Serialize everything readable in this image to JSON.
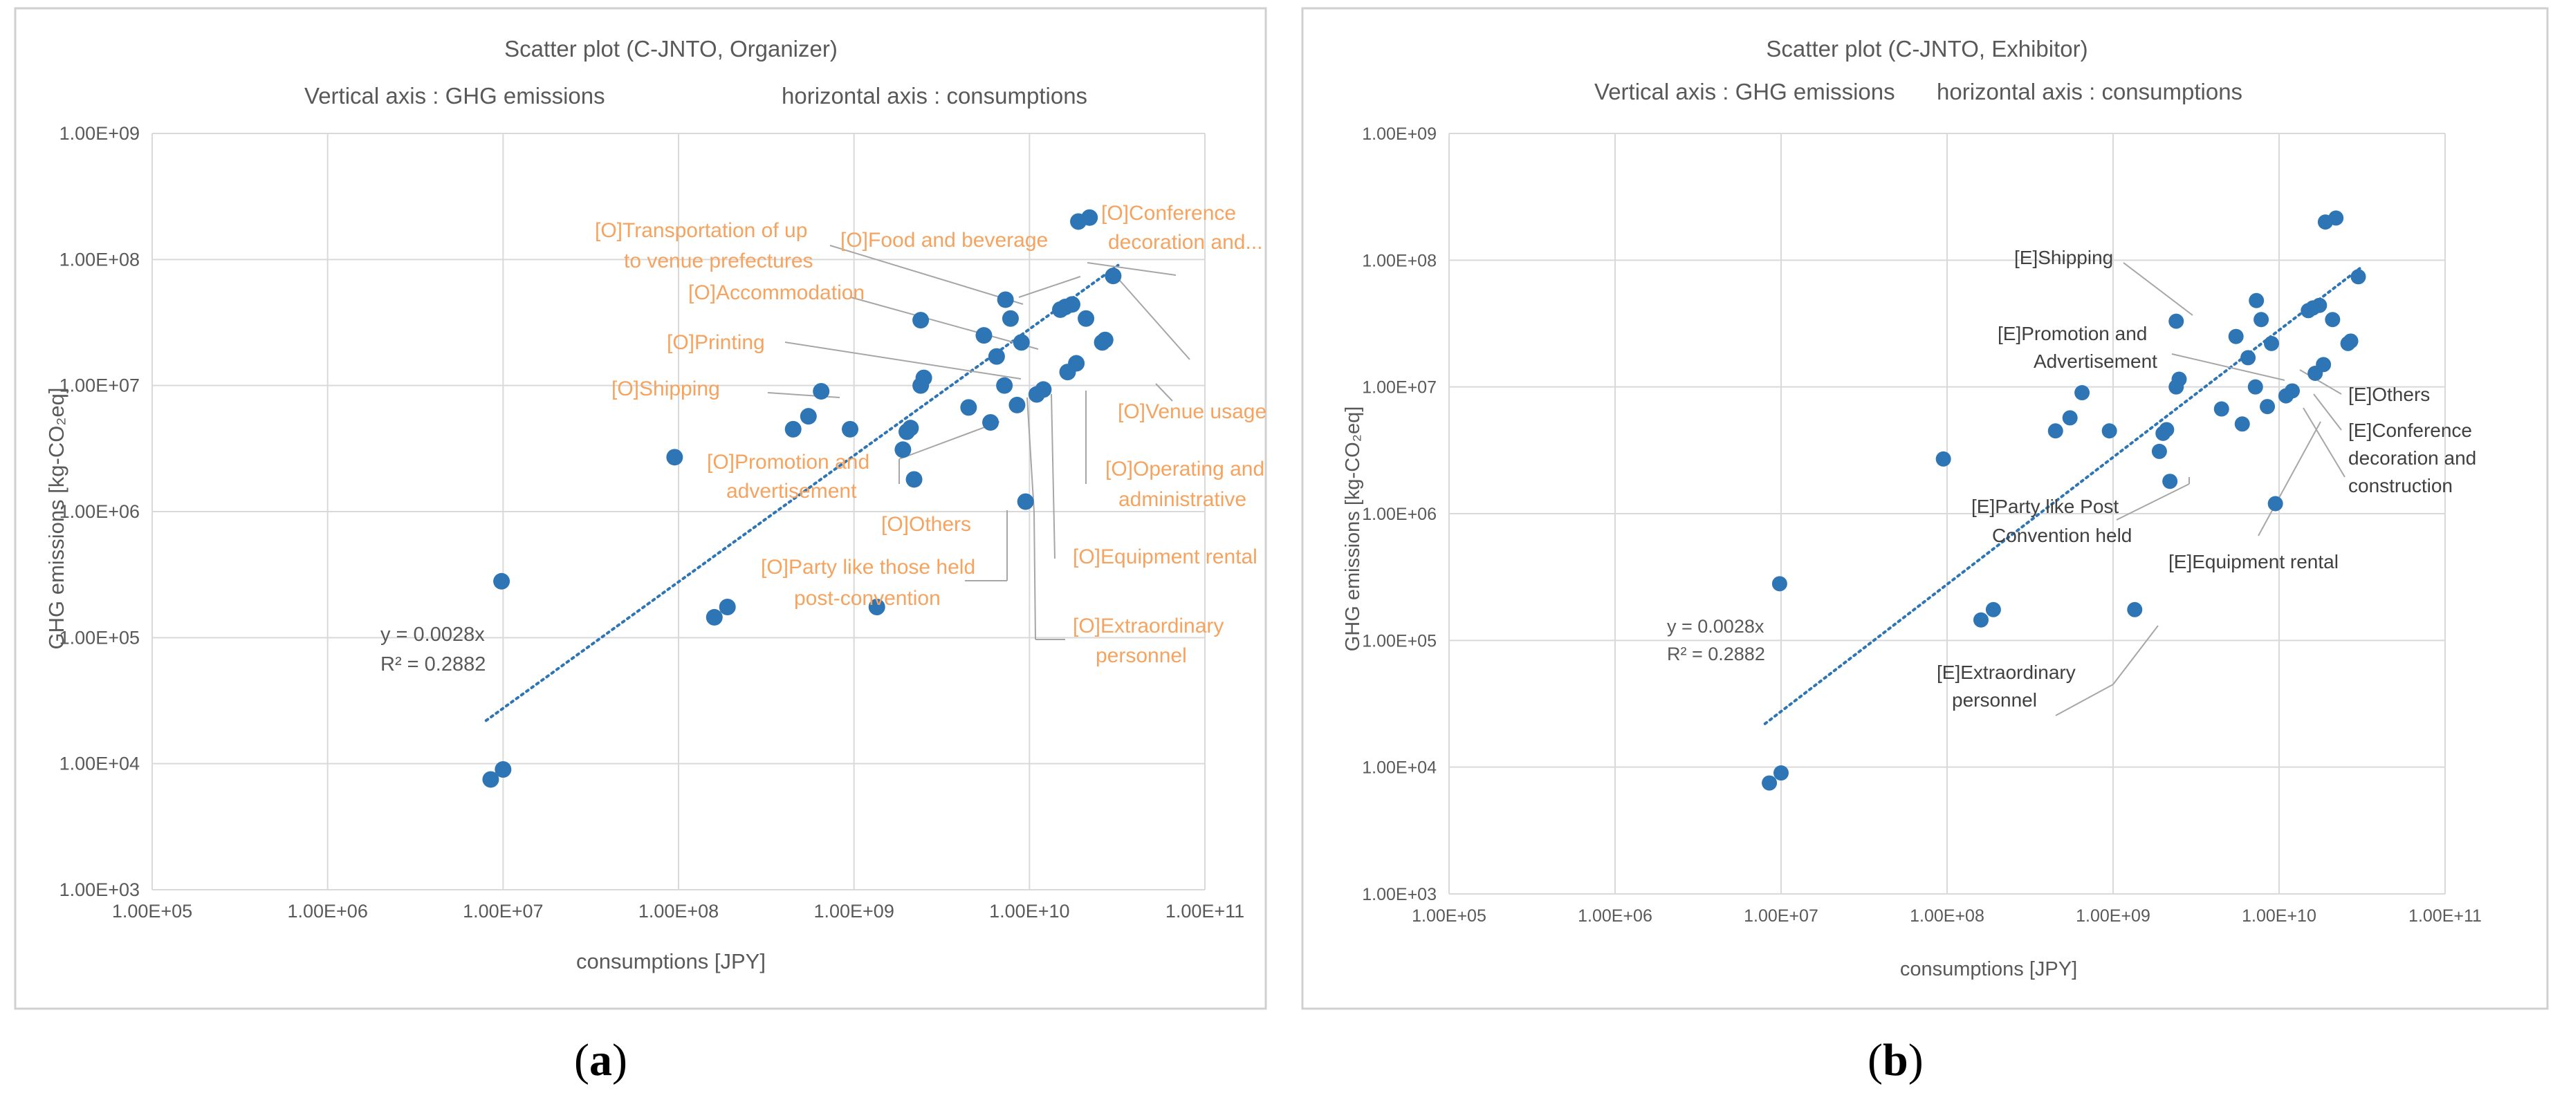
{
  "chart_data": [
    {
      "type": "scatter",
      "panel_label": "(a)",
      "panel_letter": "a",
      "title": "Scatter plot (C-JNTO, Organizer)",
      "subtitle_y": "Vertical axis : GHG emissions",
      "subtitle_x": "horizontal axis : consumptions",
      "xlabel": "consumptions [JPY]",
      "ylabel": "GHG emissions [kg-CO₂eq]",
      "xscale": "log",
      "yscale": "log",
      "xlim": [
        100000,
        100000000000
      ],
      "ylim": [
        1000,
        1000000000
      ],
      "x_ticks": [
        "1.00E+05",
        "1.00E+06",
        "1.00E+07",
        "1.00E+08",
        "1.00E+09",
        "1.00E+10",
        "1.00E+11"
      ],
      "y_ticks": [
        "1.00E+03",
        "1.00E+04",
        "1.00E+05",
        "1.00E+06",
        "1.00E+07",
        "1.00E+08",
        "1.00E+09"
      ],
      "grid": true,
      "trendline": {
        "equation": "y = 0.0028x",
        "r2": "R² = 0.2882",
        "x_range": [
          8000000,
          32000000000
        ],
        "y_range": [
          22000,
          90000000
        ]
      },
      "points": [
        [
          8500000,
          7500
        ],
        [
          10000000,
          9000
        ],
        [
          9800000,
          280000
        ],
        [
          95000000,
          2700000
        ],
        [
          160000000,
          145000
        ],
        [
          190000000,
          175000
        ],
        [
          450000000,
          4500000
        ],
        [
          550000000,
          5700000
        ],
        [
          650000000,
          9000000
        ],
        [
          950000000,
          4500000
        ],
        [
          1350000000,
          175000
        ],
        [
          1900000000,
          3100000
        ],
        [
          2000000000,
          4300000
        ],
        [
          2100000000,
          4600000
        ],
        [
          2200000000,
          1800000
        ],
        [
          2400000000,
          33000000
        ],
        [
          2400000000,
          10000000
        ],
        [
          2500000000,
          11500000
        ],
        [
          4500000000,
          6700000
        ],
        [
          5500000000,
          25000000
        ],
        [
          6000000000,
          5100000
        ],
        [
          6500000000,
          17000000
        ],
        [
          7200000000,
          10000000
        ],
        [
          7300000000,
          48000000
        ],
        [
          7800000000,
          34000000
        ],
        [
          8500000000,
          7000000
        ],
        [
          9500000000,
          1200000
        ],
        [
          9000000000,
          22000000
        ],
        [
          11000000000,
          8500000
        ],
        [
          12000000000,
          9300000
        ],
        [
          15000000000,
          40000000
        ],
        [
          16000000000,
          42000000
        ],
        [
          16500000000,
          12800000
        ],
        [
          17500000000,
          44000000
        ],
        [
          18500000000,
          15000000
        ],
        [
          19000000000,
          200000000
        ],
        [
          21000000000,
          34000000
        ],
        [
          22000000000,
          215000000
        ],
        [
          26000000000,
          22000000
        ],
        [
          27000000000,
          23000000
        ],
        [
          30000000000,
          74000000
        ]
      ],
      "annotations": [
        "[O]Food and beverage",
        "[O]Conference",
        "decoration and...",
        "[O]Transportation of up",
        "to venue prefectures",
        "[O]Accommodation",
        "[O]Printing",
        "[O]Shipping",
        "[O]Venue usage",
        "[O]Promotion and",
        "advertisement",
        "[O]Operating and",
        "administrative",
        "[O]Others",
        "[O]Equipment rental",
        "[O]Party like those held",
        "post-convention",
        "[O]Extraordinary",
        "personnel"
      ],
      "annotation_color": "#f5a35f",
      "point_color": "#2e75b6"
    },
    {
      "type": "scatter",
      "panel_label": "(b)",
      "panel_letter": "b",
      "title": "Scatter plot (C-JNTO, Exhibitor)",
      "subtitle_y": "Vertical axis : GHG emissions",
      "subtitle_x": "horizontal axis : consumptions",
      "xlabel": "consumptions [JPY]",
      "ylabel": "GHG emissions [kg-CO₂eq]",
      "xscale": "log",
      "yscale": "log",
      "xlim": [
        100000,
        100000000000
      ],
      "ylim": [
        1000,
        1000000000
      ],
      "x_ticks": [
        "1.00E+05",
        "1.00E+06",
        "1.00E+07",
        "1.00E+08",
        "1.00E+09",
        "1.00E+10",
        "1.00E+11"
      ],
      "y_ticks": [
        "1.00E+03",
        "1.00E+04",
        "1.00E+05",
        "1.00E+06",
        "1.00E+07",
        "1.00E+08",
        "1.00E+09"
      ],
      "grid": true,
      "trendline": {
        "equation": "y = 0.0028x",
        "r2": "R² = 0.2882",
        "x_range": [
          8000000,
          32000000000
        ],
        "y_range": [
          22000,
          90000000
        ]
      },
      "points": [
        [
          8500000,
          7500
        ],
        [
          10000000,
          9000
        ],
        [
          9800000,
          280000
        ],
        [
          95000000,
          2700000
        ],
        [
          160000000,
          145000
        ],
        [
          190000000,
          175000
        ],
        [
          450000000,
          4500000
        ],
        [
          550000000,
          5700000
        ],
        [
          650000000,
          9000000
        ],
        [
          950000000,
          4500000
        ],
        [
          1350000000,
          175000
        ],
        [
          1900000000,
          3100000
        ],
        [
          2000000000,
          4300000
        ],
        [
          2100000000,
          4600000
        ],
        [
          2200000000,
          1800000
        ],
        [
          2400000000,
          33000000
        ],
        [
          2400000000,
          10000000
        ],
        [
          2500000000,
          11500000
        ],
        [
          4500000000,
          6700000
        ],
        [
          5500000000,
          25000000
        ],
        [
          6000000000,
          5100000
        ],
        [
          6500000000,
          17000000
        ],
        [
          7200000000,
          10000000
        ],
        [
          7300000000,
          48000000
        ],
        [
          7800000000,
          34000000
        ],
        [
          8500000000,
          7000000
        ],
        [
          9500000000,
          1200000
        ],
        [
          9000000000,
          22000000
        ],
        [
          11000000000,
          8500000
        ],
        [
          12000000000,
          9300000
        ],
        [
          15000000000,
          40000000
        ],
        [
          16000000000,
          42000000
        ],
        [
          16500000000,
          12800000
        ],
        [
          17500000000,
          44000000
        ],
        [
          18500000000,
          15000000
        ],
        [
          19000000000,
          200000000
        ],
        [
          21000000000,
          34000000
        ],
        [
          22000000000,
          215000000
        ],
        [
          26000000000,
          22000000
        ],
        [
          27000000000,
          23000000
        ],
        [
          30000000000,
          74000000
        ]
      ],
      "annotations": [
        "[E]Shipping",
        "[E]Promotion and",
        "Advertisement",
        "[E]Others",
        "[E]Conference",
        "decoration and",
        "construction",
        "[E]Party like Post",
        "Convention held",
        "[E]Equipment rental",
        "[E]Extraordinary",
        "personnel"
      ],
      "annotation_color": "#404040",
      "point_color": "#2e75b6"
    }
  ]
}
